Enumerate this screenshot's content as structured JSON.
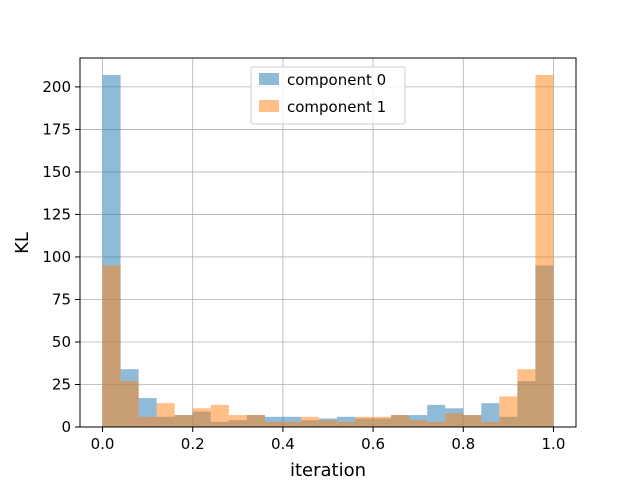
{
  "chart_data": {
    "type": "bar",
    "subtype": "overlaid-histogram",
    "xlabel": "iteration",
    "ylabel": "KL",
    "xlim": [
      -0.05,
      1.05
    ],
    "ylim": [
      0,
      217
    ],
    "grid": true,
    "legend_position": "top-center",
    "bins": {
      "start": 0.0,
      "end": 1.0,
      "count": 25
    },
    "x_ticks": [
      0.0,
      0.2,
      0.4,
      0.6,
      0.8,
      1.0
    ],
    "x_tick_labels": [
      "0.0",
      "0.2",
      "0.4",
      "0.6",
      "0.8",
      "1.0"
    ],
    "y_ticks": [
      0,
      25,
      50,
      75,
      100,
      125,
      150,
      175,
      200
    ],
    "y_tick_labels": [
      "0",
      "25",
      "50",
      "75",
      "100",
      "125",
      "150",
      "175",
      "200"
    ],
    "series": [
      {
        "name": "component 0",
        "color": "#1f77b4",
        "alpha": 0.5,
        "values": [
          207,
          34,
          17,
          6,
          7,
          9,
          3,
          4,
          7,
          6,
          6,
          4,
          5,
          6,
          5,
          5,
          7,
          7,
          13,
          11,
          7,
          14,
          6,
          27,
          95
        ]
      },
      {
        "name": "component 1",
        "color": "#ff7f0e",
        "alpha": 0.5,
        "values": [
          95,
          27,
          6,
          14,
          7,
          11,
          13,
          7,
          7,
          3,
          3,
          6,
          4,
          3,
          6,
          6,
          7,
          4,
          3,
          8,
          7,
          3,
          18,
          34,
          207
        ]
      }
    ]
  }
}
